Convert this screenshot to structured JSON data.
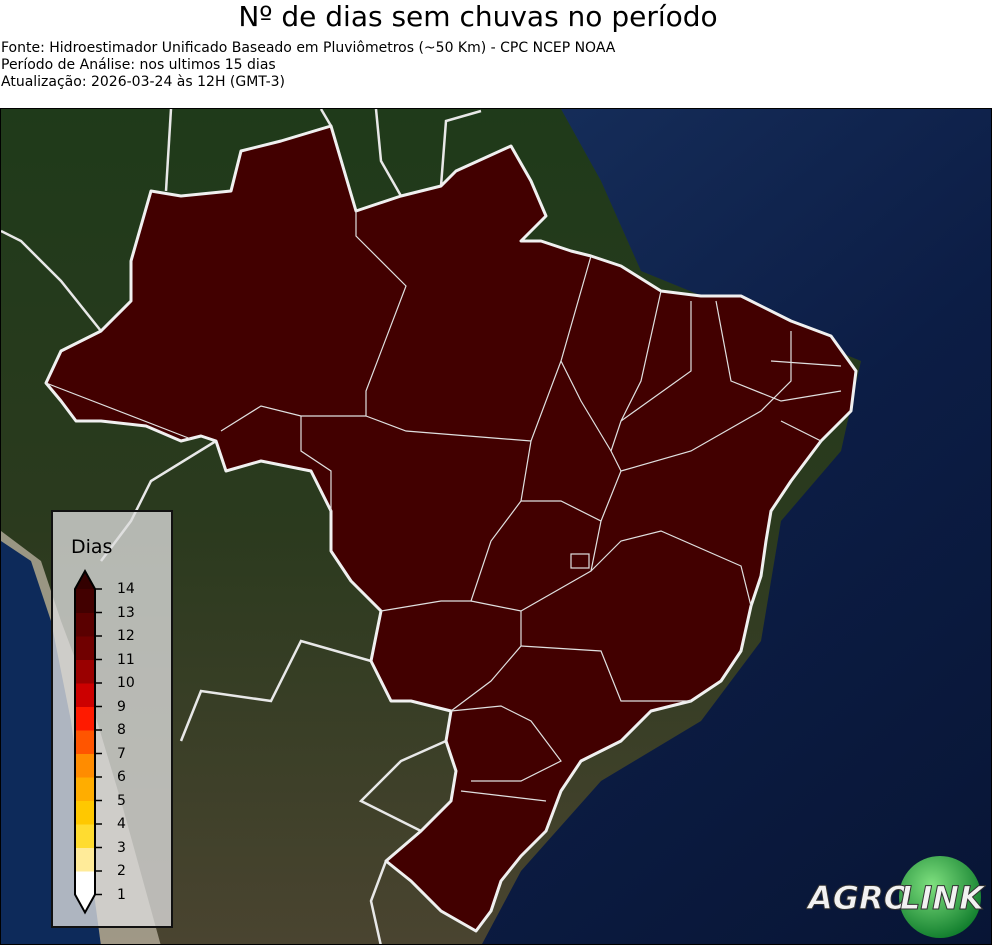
{
  "header": {
    "title": "Nº de dias sem chuvas no período",
    "source": "Fonte: Hidroestimador Unificado Baseado em Pluviômetros (~50 Km) - CPC NCEP NOAA",
    "period": "Período de Análise: nos ultimos 15 dias",
    "updated": "Atualização: 2026-03-24 às 12H (GMT-3)"
  },
  "map": {
    "region": "Brasil",
    "fill_color": "#420000",
    "value_shown": "14+"
  },
  "legend": {
    "title": "Dias",
    "ticks": [
      "1",
      "2",
      "3",
      "4",
      "5",
      "6",
      "7",
      "8",
      "9",
      "10",
      "11",
      "12",
      "13",
      "14"
    ],
    "colors": [
      "#ffffff",
      "#ffeb99",
      "#ffdc30",
      "#ffc800",
      "#ffad00",
      "#ff8c00",
      "#ff5500",
      "#ff1a00",
      "#cc0000",
      "#9a0000",
      "#700000",
      "#5a0000",
      "#420000"
    ],
    "over_color": "#330000",
    "under_color": "#ffffff"
  },
  "logo": {
    "text_left": "AGRO",
    "text_right": "LINK"
  }
}
